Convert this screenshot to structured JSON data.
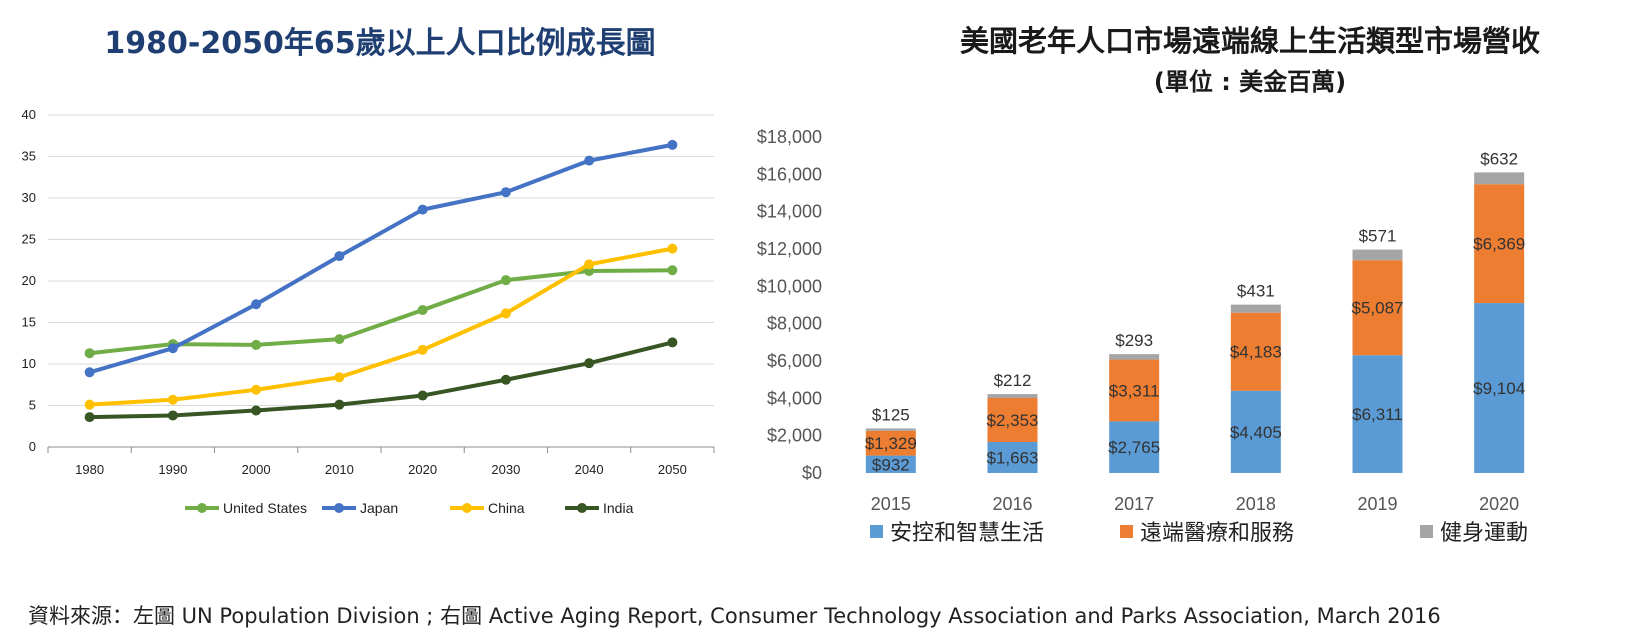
{
  "left_title": "1980-2050年65歲以上人口比例成長圖",
  "right_title": "美國老年人口市場遠端線上生活類型市場營收",
  "right_subtitle": "(單位 : 美金百萬)",
  "source": "資料來源：左圖 UN Population Division ; 右圖 Active Aging Report, Consumer Technology Association and Parks Association, March 2016",
  "chart_data": [
    {
      "type": "line",
      "title": "1980-2050年65歲以上人口比例成長圖",
      "x": [
        "1980",
        "1990",
        "2000",
        "2010",
        "2020",
        "2030",
        "2040",
        "2050"
      ],
      "ylim": [
        0,
        40
      ],
      "yticks": [
        "0",
        "5",
        "10",
        "15",
        "20",
        "25",
        "30",
        "35",
        "40"
      ],
      "grid": true,
      "legend": "bottom",
      "series": [
        {
          "name": "United States",
          "color": "#70ad47",
          "values": [
            11.3,
            12.4,
            12.3,
            13.0,
            16.5,
            20.1,
            21.2,
            21.3
          ]
        },
        {
          "name": "Japan",
          "color": "#4472c4",
          "values": [
            9.0,
            11.9,
            17.2,
            23.0,
            28.6,
            30.7,
            34.5,
            36.4
          ]
        },
        {
          "name": "China",
          "color": "#ffc000",
          "values": [
            5.1,
            5.7,
            6.9,
            8.4,
            11.7,
            16.1,
            22.0,
            23.9
          ]
        },
        {
          "name": "India",
          "color": "#375623",
          "values": [
            3.6,
            3.8,
            4.4,
            5.1,
            6.2,
            8.1,
            10.1,
            12.6
          ]
        }
      ]
    },
    {
      "type": "bar",
      "stacked": true,
      "title": "美國老年人口市場遠端線上生活類型市場營收",
      "subtitle": "(單位 : 美金百萬)",
      "categories": [
        "2015",
        "2016",
        "2017",
        "2018",
        "2019",
        "2020"
      ],
      "ylim": [
        0,
        18000
      ],
      "yticks": [
        "$0",
        "$2,000",
        "$4,000",
        "$6,000",
        "$8,000",
        "$10,000",
        "$12,000",
        "$14,000",
        "$16,000",
        "$18,000"
      ],
      "legend": "bottom",
      "series": [
        {
          "name": "安控和智慧生活",
          "color": "#5b9bd5",
          "values": [
            932,
            1663,
            2765,
            4405,
            6311,
            9104
          ],
          "labels": [
            "$932",
            "$1,663",
            "$2,765",
            "$4,405",
            "$6,311",
            "$9,104"
          ]
        },
        {
          "name": "遠端醫療和服務",
          "color": "#ed7d31",
          "values": [
            1329,
            2353,
            3311,
            4183,
            5087,
            6369
          ],
          "labels": [
            "$1,329",
            "$2,353",
            "$3,311",
            "$4,183",
            "$5,087",
            "$6,369"
          ]
        },
        {
          "name": "健身運動",
          "color": "#a5a5a5",
          "values": [
            125,
            212,
            293,
            431,
            571,
            632
          ],
          "labels": [
            "$125",
            "$212",
            "$293",
            "$431",
            "$571",
            "$632"
          ]
        }
      ]
    }
  ]
}
